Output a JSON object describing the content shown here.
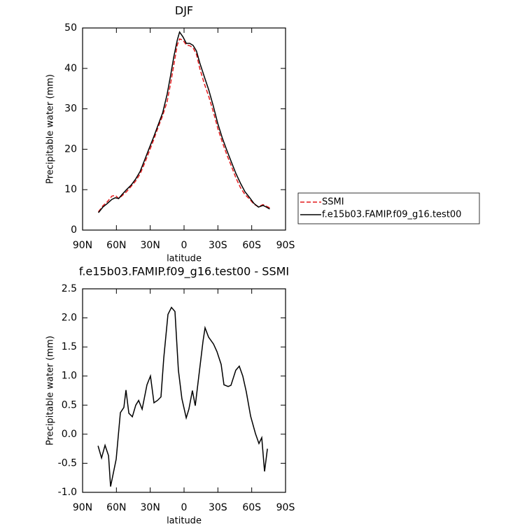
{
  "chart_data": [
    {
      "type": "line",
      "title": "DJF",
      "x_label": "latitude",
      "y_label": "Precipitable water (mm)",
      "x": [
        76,
        72,
        68,
        64,
        61,
        58,
        55,
        51,
        47,
        43,
        39,
        35,
        31,
        27,
        23,
        19,
        15,
        12,
        9,
        6,
        4,
        1,
        -2,
        -5,
        -8,
        -11,
        -14,
        -18,
        -22,
        -26,
        -30,
        -34,
        -38,
        -42,
        -46,
        -50,
        -54,
        -58,
        -62,
        -66,
        -70,
        -73,
        -76
      ],
      "series": [
        {
          "name": "SSMI",
          "color": "#e41a1c",
          "dash": true,
          "values": [
            4.5,
            6.0,
            7.0,
            8.4,
            8.6,
            7.8,
            8.5,
            9.5,
            10.8,
            12.1,
            13.9,
            16.5,
            19.4,
            22.3,
            25.4,
            28.3,
            31.8,
            36.2,
            41,
            45.8,
            47.3,
            47,
            45.8,
            45.6,
            45.1,
            43.5,
            39.9,
            36.2,
            33,
            29.2,
            25.1,
            21.7,
            18.6,
            15.8,
            12.9,
            10.5,
            8.8,
            7.7,
            6.4,
            5.8,
            6.3,
            5.9,
            5.5
          ]
        },
        {
          "name": "f.e15b03.FAMIP.f09_g16.test00",
          "color": "#000000",
          "dash": false,
          "values": [
            4.3,
            5.7,
            6.6,
            7.6,
            8.0,
            7.8,
            8.8,
            10,
            11.1,
            12.6,
            14.5,
            17.3,
            20.2,
            23,
            26,
            29,
            33.6,
            38.2,
            43,
            47,
            49,
            47.8,
            46.2,
            46.2,
            45.7,
            44.3,
            41.3,
            37.9,
            34.6,
            30.6,
            26.3,
            22.7,
            19.7,
            16.8,
            14,
            11.6,
            9.5,
            8.1,
            6.6,
            5.7,
            6.1,
            5.7,
            5.2
          ]
        }
      ],
      "xlim": [
        90,
        -90
      ],
      "xticks": [
        {
          "value": 90,
          "label": "90N"
        },
        {
          "value": 60,
          "label": "60N"
        },
        {
          "value": 30,
          "label": "30N"
        },
        0,
        {
          "value": -30,
          "label": "30S"
        },
        {
          "value": -60,
          "label": "60S"
        },
        {
          "value": -90,
          "label": "90S"
        }
      ],
      "ylim": [
        0,
        50
      ],
      "yticks": [
        0,
        10,
        20,
        30,
        40,
        50
      ],
      "legend": "right"
    },
    {
      "type": "line",
      "title": "f.e15b03.FAMIP.f09_g16.test00 - SSMI",
      "x_label": "latitude",
      "y_label": "Precipitable water (mm)",
      "x": [
        76.3,
        73.2,
        70.1,
        67,
        65.2,
        60.2,
        56.5,
        53.4,
        51.5,
        49,
        45.9,
        42.8,
        40.3,
        37.2,
        32.9,
        29.8,
        26.7,
        23.6,
        20.5,
        18,
        14.3,
        11.2,
        8.1,
        5,
        1.9,
        -1.9,
        -4.3,
        -7.4,
        -9.9,
        -13.7,
        -16.8,
        -18.6,
        -21.7,
        -26.1,
        -29.2,
        -32.9,
        -35.4,
        -39.1,
        -41.6,
        -45.9,
        -49,
        -52.1,
        -55.2,
        -59,
        -63.3,
        -66.4,
        -68.9,
        -71.4,
        -73.9
      ],
      "series": [
        {
          "color": "#000000",
          "dash": false,
          "values": [
            -0.2,
            -0.41,
            -0.19,
            -0.37,
            -0.9,
            -0.43,
            0.37,
            0.46,
            0.76,
            0.36,
            0.3,
            0.5,
            0.58,
            0.43,
            0.85,
            1.0,
            0.54,
            0.58,
            0.64,
            1.31,
            2.06,
            2.18,
            2.11,
            1.1,
            0.61,
            0.28,
            0.43,
            0.75,
            0.49,
            1.1,
            1.6,
            1.83,
            1.67,
            1.55,
            1.42,
            1.2,
            0.85,
            0.82,
            0.84,
            1.1,
            1.17,
            1.0,
            0.73,
            0.31,
            0.01,
            -0.16,
            -0.06,
            -0.64,
            -0.25
          ]
        }
      ],
      "xlim": [
        90,
        -90
      ],
      "xticks": [
        {
          "value": 90,
          "label": "90N"
        },
        {
          "value": 60,
          "label": "60N"
        },
        {
          "value": 30,
          "label": "30N"
        },
        0,
        {
          "value": -30,
          "label": "30S"
        },
        {
          "value": -60,
          "label": "60S"
        },
        {
          "value": -90,
          "label": "90S"
        }
      ],
      "ylim": [
        -1,
        2.5
      ],
      "yticks": [
        {
          "value": -1,
          "label": "-1.0"
        },
        {
          "value": -0.5,
          "label": "-0.5"
        },
        {
          "value": 0,
          "label": "0.0"
        },
        {
          "value": 0.5,
          "label": "0.5"
        },
        {
          "value": 1,
          "label": "1.0"
        },
        {
          "value": 1.5,
          "label": "1.5"
        },
        {
          "value": 2,
          "label": "2.0"
        },
        {
          "value": 2.5,
          "label": "2.5"
        }
      ]
    }
  ]
}
